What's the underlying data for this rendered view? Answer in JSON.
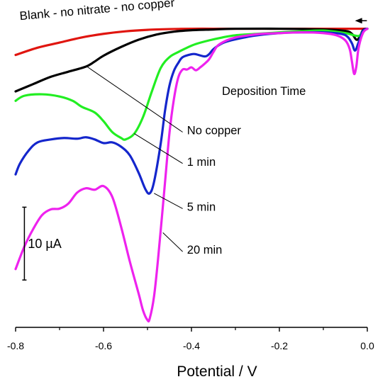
{
  "chart_data": {
    "type": "line",
    "title": "",
    "xlabel": "Potential / V",
    "ylabel": "",
    "xlim": [
      -0.8,
      0.0
    ],
    "x_ticks": [
      -0.8,
      -0.6,
      -0.4,
      -0.2,
      0.0
    ],
    "x_tick_labels": [
      "-0.8",
      "-0.6",
      "-0.4",
      "-0.2",
      "0.0"
    ],
    "y_units": "µA",
    "ylim": [
      -41,
      2
    ],
    "y_axis_shown": false,
    "grid": false,
    "scale_bar": {
      "label": "10 µA",
      "value": 10,
      "y_from": -34.5,
      "y_to": -24.5,
      "x": -0.78
    },
    "scan_arrow": {
      "direction": "negative",
      "from_x": -0.001,
      "to_x": -0.028,
      "y": 1.1
    },
    "annotation_title": "Deposition Time",
    "series": [
      {
        "name": "Blank - no nitrate - no copper",
        "color": "#e0150f",
        "x": [
          -0.8,
          -0.75,
          -0.7,
          -0.65,
          -0.6,
          -0.55,
          -0.5,
          -0.45,
          -0.4,
          -0.35,
          -0.3,
          -0.25,
          -0.2,
          -0.15,
          -0.1,
          -0.05,
          0.0
        ],
        "y": [
          -3.6,
          -2.6,
          -1.9,
          -1.2,
          -0.7,
          -0.35,
          -0.15,
          -0.05,
          0.0,
          0.0,
          0.0,
          0.0,
          0.0,
          0.0,
          0.0,
          0.0,
          0.0
        ]
      },
      {
        "name": "No copper",
        "color": "#000000",
        "x": [
          -0.8,
          -0.76,
          -0.72,
          -0.68,
          -0.64,
          -0.62,
          -0.6,
          -0.56,
          -0.52,
          -0.48,
          -0.44,
          -0.4,
          -0.35,
          -0.3,
          -0.2,
          -0.1,
          -0.05,
          -0.035,
          -0.025,
          -0.018,
          -0.01,
          0.0
        ],
        "y": [
          -8.6,
          -7.6,
          -6.6,
          -5.9,
          -5.2,
          -4.5,
          -3.7,
          -2.5,
          -1.5,
          -0.8,
          -0.4,
          -0.2,
          -0.1,
          0.0,
          0.0,
          -0.1,
          -0.3,
          -0.7,
          -1.5,
          -1.2,
          -0.2,
          0.0
        ]
      },
      {
        "name": "1 min",
        "color": "#22ee22",
        "x": [
          -0.8,
          -0.78,
          -0.74,
          -0.7,
          -0.67,
          -0.65,
          -0.62,
          -0.6,
          -0.58,
          -0.56,
          -0.55,
          -0.53,
          -0.51,
          -0.49,
          -0.47,
          -0.45,
          -0.43,
          -0.41,
          -0.39,
          -0.36,
          -0.33,
          -0.3,
          -0.25,
          -0.2,
          -0.15,
          -0.1,
          -0.05,
          -0.02,
          -0.01,
          0.0
        ],
        "y": [
          -9.9,
          -9.2,
          -9.0,
          -9.3,
          -9.9,
          -10.7,
          -11.5,
          -12.7,
          -14.2,
          -15.0,
          -15.2,
          -14.4,
          -12.1,
          -8.6,
          -5.4,
          -3.9,
          -3.2,
          -2.6,
          -2.1,
          -1.6,
          -1.2,
          -0.9,
          -0.7,
          -0.5,
          -0.35,
          -0.25,
          -0.6,
          -1.0,
          -0.3,
          0.0
        ]
      },
      {
        "name": "5 min",
        "color": "#1426cc",
        "x": [
          -0.8,
          -0.79,
          -0.77,
          -0.75,
          -0.72,
          -0.69,
          -0.66,
          -0.64,
          -0.62,
          -0.6,
          -0.58,
          -0.56,
          -0.54,
          -0.52,
          -0.505,
          -0.495,
          -0.485,
          -0.47,
          -0.46,
          -0.45,
          -0.44,
          -0.43,
          -0.42,
          -0.4,
          -0.39,
          -0.37,
          -0.36,
          -0.35,
          -0.33,
          -0.31,
          -0.28,
          -0.25,
          -0.2,
          -0.15,
          -0.1,
          -0.06,
          -0.045,
          -0.035,
          -0.028,
          -0.02,
          -0.01,
          0.0
        ],
        "y": [
          -20.0,
          -18.5,
          -16.7,
          -15.6,
          -15.2,
          -15.0,
          -15.1,
          -14.9,
          -15.2,
          -15.7,
          -15.6,
          -16.2,
          -17.4,
          -19.8,
          -22.0,
          -22.6,
          -21.0,
          -15.8,
          -11.2,
          -7.8,
          -5.8,
          -4.7,
          -3.9,
          -3.5,
          -3.5,
          -3.8,
          -3.5,
          -2.8,
          -2.0,
          -1.6,
          -1.2,
          -0.9,
          -0.6,
          -0.5,
          -0.5,
          -0.7,
          -1.1,
          -2.0,
          -3.0,
          -1.9,
          -0.3,
          0.0
        ]
      },
      {
        "name": "20 min",
        "color": "#ee22ee",
        "x": [
          -0.8,
          -0.78,
          -0.76,
          -0.74,
          -0.72,
          -0.7,
          -0.68,
          -0.66,
          -0.64,
          -0.62,
          -0.6,
          -0.58,
          -0.56,
          -0.54,
          -0.52,
          -0.51,
          -0.5,
          -0.495,
          -0.485,
          -0.475,
          -0.46,
          -0.45,
          -0.44,
          -0.43,
          -0.42,
          -0.41,
          -0.4,
          -0.39,
          -0.38,
          -0.37,
          -0.36,
          -0.35,
          -0.34,
          -0.32,
          -0.3,
          -0.27,
          -0.24,
          -0.2,
          -0.15,
          -0.1,
          -0.07,
          -0.05,
          -0.04,
          -0.035,
          -0.03,
          -0.025,
          -0.02,
          -0.01,
          0.0
        ],
        "y": [
          -33.0,
          -29.9,
          -27.5,
          -25.6,
          -24.8,
          -24.7,
          -24.0,
          -22.5,
          -21.9,
          -22.1,
          -21.6,
          -23.1,
          -27.2,
          -32.0,
          -36.4,
          -38.7,
          -40.0,
          -39.8,
          -36.7,
          -31.0,
          -21.0,
          -14.3,
          -9.7,
          -6.7,
          -5.6,
          -5.6,
          -5.3,
          -5.7,
          -5.3,
          -4.8,
          -4.2,
          -3.2,
          -2.3,
          -1.6,
          -1.2,
          -0.9,
          -0.7,
          -0.6,
          -0.5,
          -0.6,
          -0.9,
          -1.6,
          -2.8,
          -4.5,
          -6.2,
          -5.2,
          -2.7,
          -0.6,
          0.0
        ]
      }
    ],
    "labels": [
      {
        "text": "Blank - no nitrate - no copper",
        "series": "Blank - no nitrate - no copper",
        "x": -0.79,
        "y": 1.2,
        "leader": null
      },
      {
        "text": "No copper",
        "series": "No copper",
        "x": -0.41,
        "y": -14.5,
        "leader": [
          [
            -0.64,
            -5.1
          ],
          [
            -0.42,
            -14.2
          ]
        ]
      },
      {
        "text": "1 min",
        "series": "1 min",
        "x": -0.41,
        "y": -18.8,
        "leader": [
          [
            -0.53,
            -14.4
          ],
          [
            -0.42,
            -18.5
          ]
        ]
      },
      {
        "text": "5 min",
        "series": "5 min",
        "x": -0.41,
        "y": -25.0,
        "leader": [
          [
            -0.485,
            -22.6
          ],
          [
            -0.42,
            -24.7
          ]
        ]
      },
      {
        "text": "20 min",
        "series": "20 min",
        "x": -0.41,
        "y": -30.9,
        "leader": [
          [
            -0.465,
            -28.0
          ],
          [
            -0.42,
            -30.6
          ]
        ]
      }
    ]
  }
}
